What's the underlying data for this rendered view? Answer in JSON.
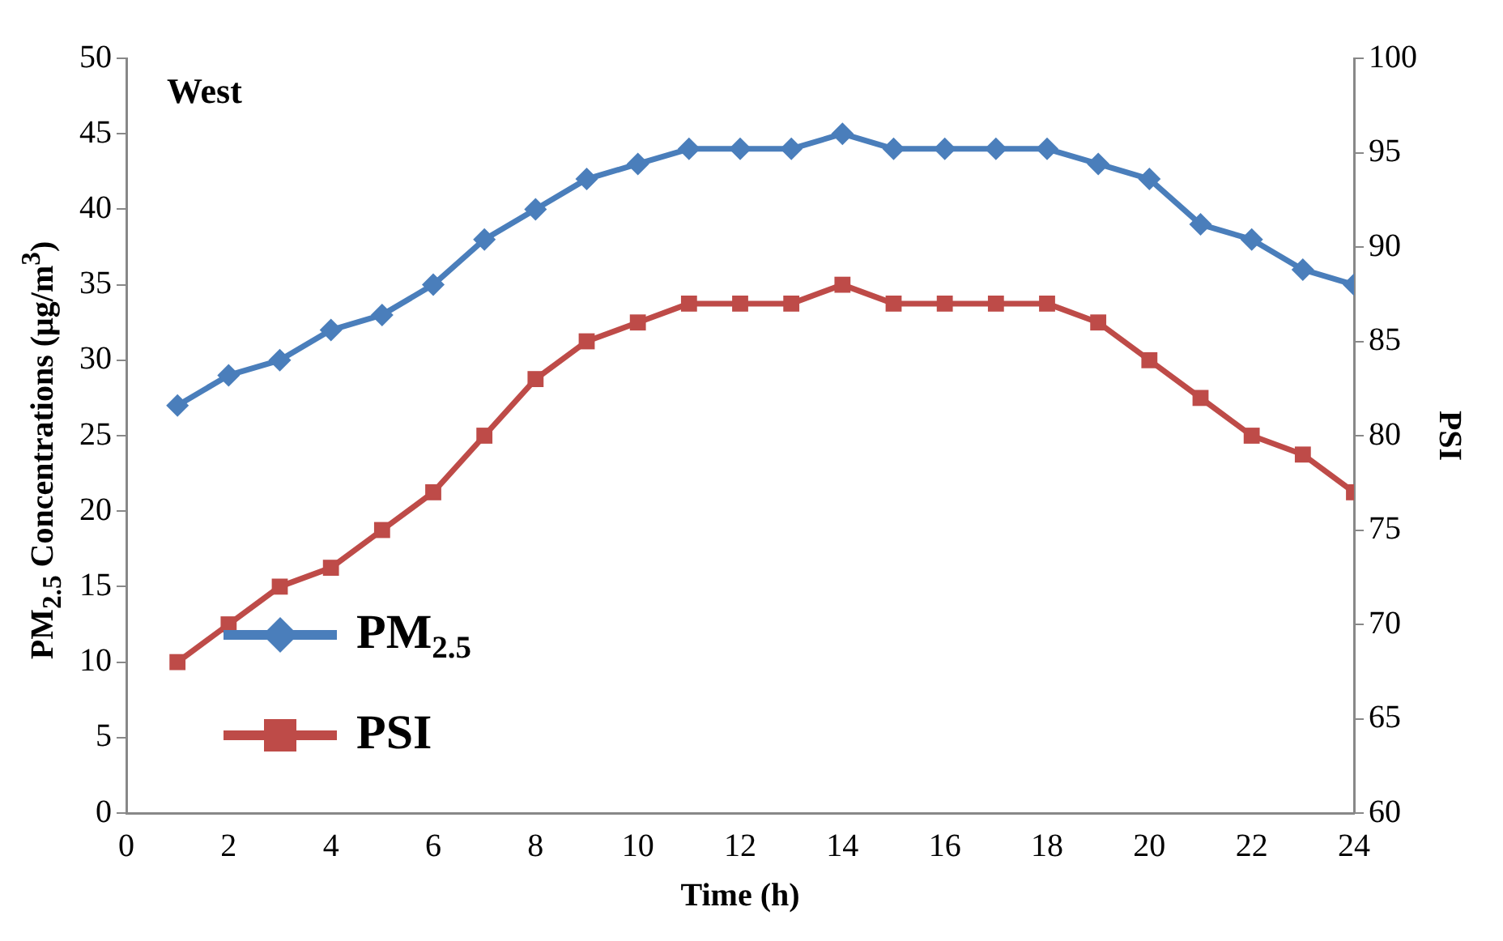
{
  "chart_data": {
    "type": "line",
    "xlabel": "Time (h)",
    "ylabel": "PM$_{2.5}$ Concentrations (μg/m$^{3}$)",
    "y2label": "PSI",
    "annotations": [
      "West"
    ],
    "x": [
      1,
      2,
      3,
      4,
      5,
      6,
      7,
      8,
      9,
      10,
      11,
      12,
      13,
      14,
      15,
      16,
      17,
      18,
      19,
      20,
      21,
      22,
      23,
      24
    ],
    "series": [
      {
        "name": "PM$_{2.5}$",
        "color": "#4a7ebb",
        "marker": "diamond",
        "values": [
          27,
          29,
          30,
          32,
          33,
          35,
          38,
          40,
          42,
          43,
          44,
          44,
          44,
          45,
          44,
          44,
          44,
          44,
          43,
          42,
          39,
          38,
          36,
          35
        ]
      },
      {
        "name": "PSI",
        "color": "#be4b48",
        "marker": "square",
        "axis": "y2",
        "values": [
          68,
          70,
          72,
          73,
          75,
          77,
          80,
          83,
          85,
          86,
          87,
          87,
          87,
          88,
          87,
          87,
          87,
          87,
          86,
          84,
          82,
          80,
          79,
          77
        ]
      }
    ],
    "xlim": [
      0,
      24
    ],
    "xticks": [
      0,
      2,
      4,
      6,
      8,
      10,
      12,
      14,
      16,
      18,
      20,
      22,
      24
    ],
    "ylim": [
      0,
      50
    ],
    "yticks": [
      0,
      5,
      10,
      15,
      20,
      25,
      30,
      35,
      40,
      45,
      50
    ],
    "y2lim": [
      60,
      100
    ],
    "y2ticks": [
      60,
      65,
      70,
      75,
      80,
      85,
      90,
      95,
      100
    ],
    "grid": false,
    "legend": "bottom left",
    "line_style": "solid"
  }
}
